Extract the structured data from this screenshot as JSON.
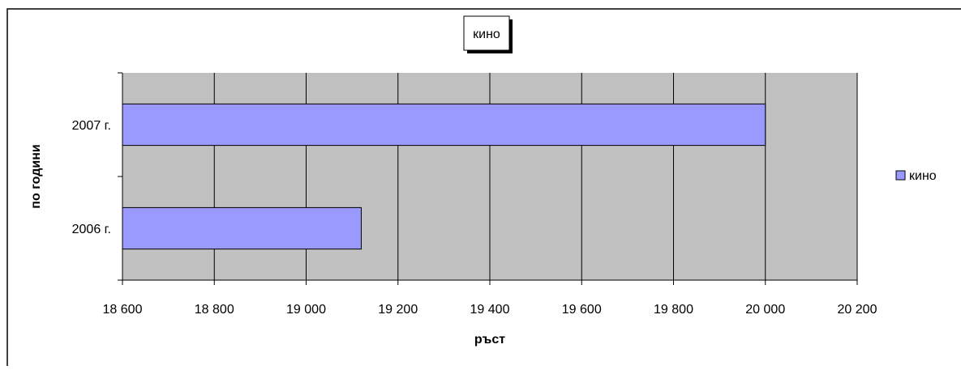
{
  "chart_data": {
    "type": "bar",
    "orientation": "horizontal",
    "title": "кино",
    "xlabel": "ръст",
    "ylabel": "по години",
    "categories": [
      "2006 г.",
      "2007 г."
    ],
    "series": [
      {
        "name": "кино",
        "values": [
          19120,
          20000
        ]
      }
    ],
    "xlim": [
      18600,
      20200
    ],
    "xticks": [
      18600,
      18800,
      19000,
      19200,
      19400,
      19600,
      19800,
      20000,
      20200
    ],
    "xtick_labels": [
      "18 600",
      "18 800",
      "19 000",
      "19 200",
      "19 400",
      "19 600",
      "19 800",
      "20 000",
      "20 200"
    ],
    "grid": true,
    "legend_position": "right",
    "colors": {
      "bar_fill": "#9999ff",
      "plot_background": "#c0c0c0",
      "gridline": "#000000"
    }
  }
}
